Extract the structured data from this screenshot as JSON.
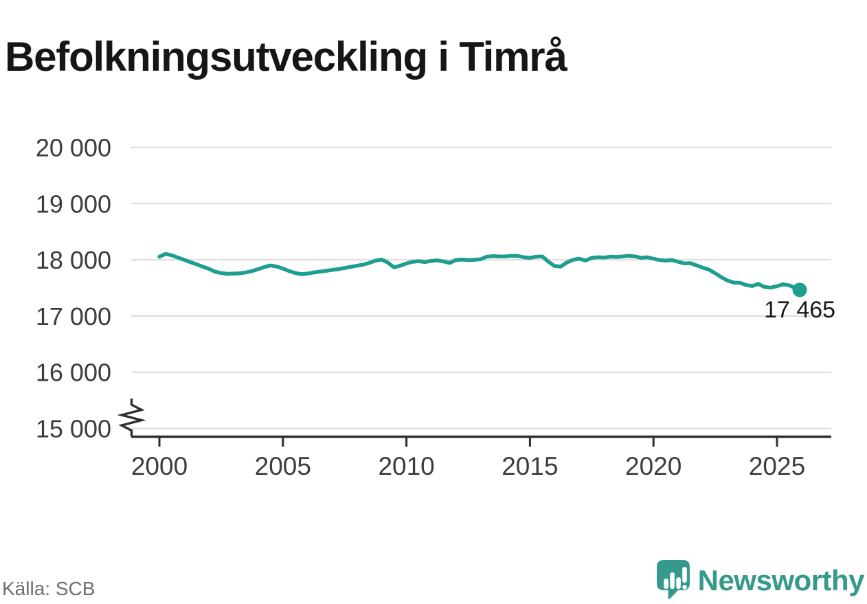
{
  "title": "Befolkningsutveckling i Timrå",
  "source": "Källa: SCB",
  "logo": {
    "text": "Newsworthy",
    "icon": "newsworthy-speech-bubble-chart-icon"
  },
  "colors": {
    "line": "#1D9E8F",
    "grid": "#DCDCDC",
    "axis": "#2E2E2E",
    "tick_text": "#3C3C3C",
    "title_text": "#161616",
    "annotation_text": "#1A1A1A",
    "source_text": "#6E6E6E",
    "logo": "#35998C"
  },
  "chart_data": {
    "type": "line",
    "title": "Befolkningsutveckling i Timrå",
    "xlabel": "",
    "ylabel": "",
    "x_ticks": [
      2000,
      2005,
      2010,
      2015,
      2020,
      2025
    ],
    "x_tick_labels": [
      "2000",
      "2005",
      "2010",
      "2015",
      "2020",
      "2025"
    ],
    "y_ticks": [
      20000,
      19000,
      18000,
      17000,
      16000,
      15000
    ],
    "y_tick_labels": [
      "20 000",
      "19 000",
      "18 000",
      "17 000",
      "16 000",
      "15 000"
    ],
    "ylim": [
      15000,
      20000
    ],
    "xlim": [
      1999,
      2027.2
    ],
    "y_axis_break": true,
    "grid": "horizontal",
    "legend": "none",
    "end_dot": true,
    "end_label": "17 465",
    "x": [
      2000,
      2000.25,
      2000.5,
      2000.75,
      2001,
      2001.25,
      2001.5,
      2001.75,
      2002,
      2002.25,
      2002.5,
      2002.75,
      2003,
      2003.25,
      2003.5,
      2003.75,
      2004,
      2004.25,
      2004.5,
      2004.75,
      2005,
      2005.25,
      2005.5,
      2005.75,
      2006,
      2006.25,
      2006.5,
      2006.75,
      2007,
      2007.25,
      2007.5,
      2007.75,
      2008,
      2008.25,
      2008.5,
      2008.75,
      2009,
      2009.25,
      2009.5,
      2009.75,
      2010,
      2010.25,
      2010.5,
      2010.75,
      2011,
      2011.25,
      2011.5,
      2011.75,
      2012,
      2012.25,
      2012.5,
      2012.75,
      2013,
      2013.25,
      2013.5,
      2013.75,
      2014,
      2014.25,
      2014.5,
      2014.75,
      2015,
      2015.25,
      2015.5,
      2015.75,
      2016,
      2016.25,
      2016.5,
      2016.75,
      2017,
      2017.25,
      2017.5,
      2017.75,
      2018,
      2018.25,
      2018.5,
      2018.75,
      2019,
      2019.25,
      2019.5,
      2019.75,
      2020,
      2020.25,
      2020.5,
      2020.75,
      2021,
      2021.25,
      2021.5,
      2021.75,
      2022,
      2022.25,
      2022.5,
      2022.75,
      2023,
      2023.25,
      2023.5,
      2023.75,
      2024,
      2024.25,
      2024.5,
      2024.75,
      2025,
      2025.25,
      2025.5,
      2025.75,
      2025.85,
      2025.92
    ],
    "y": [
      18055,
      18105,
      18080,
      18040,
      18000,
      17960,
      17920,
      17880,
      17840,
      17790,
      17765,
      17750,
      17755,
      17760,
      17775,
      17800,
      17835,
      17870,
      17900,
      17880,
      17845,
      17800,
      17765,
      17745,
      17755,
      17775,
      17790,
      17805,
      17820,
      17835,
      17855,
      17875,
      17895,
      17915,
      17945,
      17985,
      18005,
      17950,
      17865,
      17895,
      17935,
      17965,
      17975,
      17960,
      17980,
      17990,
      17970,
      17945,
      17995,
      18005,
      17995,
      18000,
      18010,
      18055,
      18065,
      18060,
      18060,
      18070,
      18070,
      18045,
      18035,
      18055,
      18060,
      17965,
      17890,
      17880,
      17955,
      18000,
      18020,
      17985,
      18035,
      18045,
      18040,
      18055,
      18050,
      18060,
      18070,
      18060,
      18035,
      18045,
      18020,
      17995,
      17985,
      17995,
      17965,
      17935,
      17940,
      17900,
      17860,
      17825,
      17760,
      17690,
      17630,
      17595,
      17590,
      17550,
      17535,
      17570,
      17515,
      17505,
      17530,
      17565,
      17545,
      17495,
      17445,
      17465
    ],
    "last_point": {
      "x": 2025.92,
      "y": 17465
    }
  }
}
